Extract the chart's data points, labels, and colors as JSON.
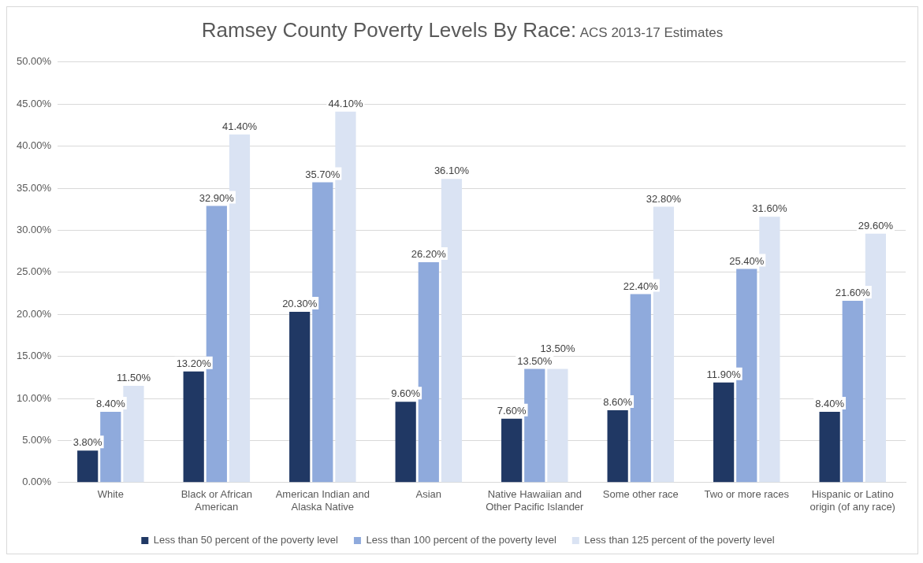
{
  "chart_data": {
    "type": "bar",
    "title": "Ramsey County Poverty Levels By Race:",
    "subtitle": "ACS 2013-17 Estimates",
    "categories": [
      "White",
      "Black or African American",
      "American Indian and Alaska Native",
      "Asian",
      "Native Hawaiian and Other Pacific Islander",
      "Some other race",
      "Two or more races",
      "Hispanic or Latino origin (of any race)"
    ],
    "series": [
      {
        "name": "Less than 50 percent of the poverty level",
        "color": "#203864",
        "values": [
          3.8,
          13.2,
          20.3,
          9.6,
          7.6,
          8.6,
          11.9,
          8.4
        ],
        "value_labels": [
          "3.80%",
          "13.20%",
          "20.30%",
          "9.60%",
          "7.60%",
          "8.60%",
          "11.90%",
          "8.40%"
        ]
      },
      {
        "name": "Less than 100 percent of the poverty level",
        "color": "#8faadc",
        "values": [
          8.4,
          32.9,
          35.7,
          26.2,
          13.5,
          22.4,
          25.4,
          21.6
        ],
        "value_labels": [
          "8.40%",
          "32.90%",
          "35.70%",
          "26.20%",
          "13.50%",
          "22.40%",
          "25.40%",
          "21.60%"
        ]
      },
      {
        "name": "Less than 125 percent of the poverty level",
        "color": "#dae3f3",
        "values": [
          11.5,
          41.4,
          44.1,
          36.1,
          13.5,
          32.8,
          31.6,
          29.6
        ],
        "value_labels": [
          "11.50%",
          "41.40%",
          "44.10%",
          "36.10%",
          "13.50%",
          "32.80%",
          "31.60%",
          "29.60%"
        ]
      }
    ],
    "ylim": [
      0,
      50
    ],
    "yticks": [
      {
        "value": 0,
        "label": "0.00%"
      },
      {
        "value": 5,
        "label": "5.00%"
      },
      {
        "value": 10,
        "label": "10.00%"
      },
      {
        "value": 15,
        "label": "15.00%"
      },
      {
        "value": 20,
        "label": "20.00%"
      },
      {
        "value": 25,
        "label": "25.00%"
      },
      {
        "value": 30,
        "label": "30.00%"
      },
      {
        "value": 35,
        "label": "35.00%"
      },
      {
        "value": 40,
        "label": "40.00%"
      },
      {
        "value": 45,
        "label": "45.00%"
      },
      {
        "value": 50,
        "label": "50.00%"
      }
    ],
    "grid": "y",
    "legend": "bottom"
  }
}
